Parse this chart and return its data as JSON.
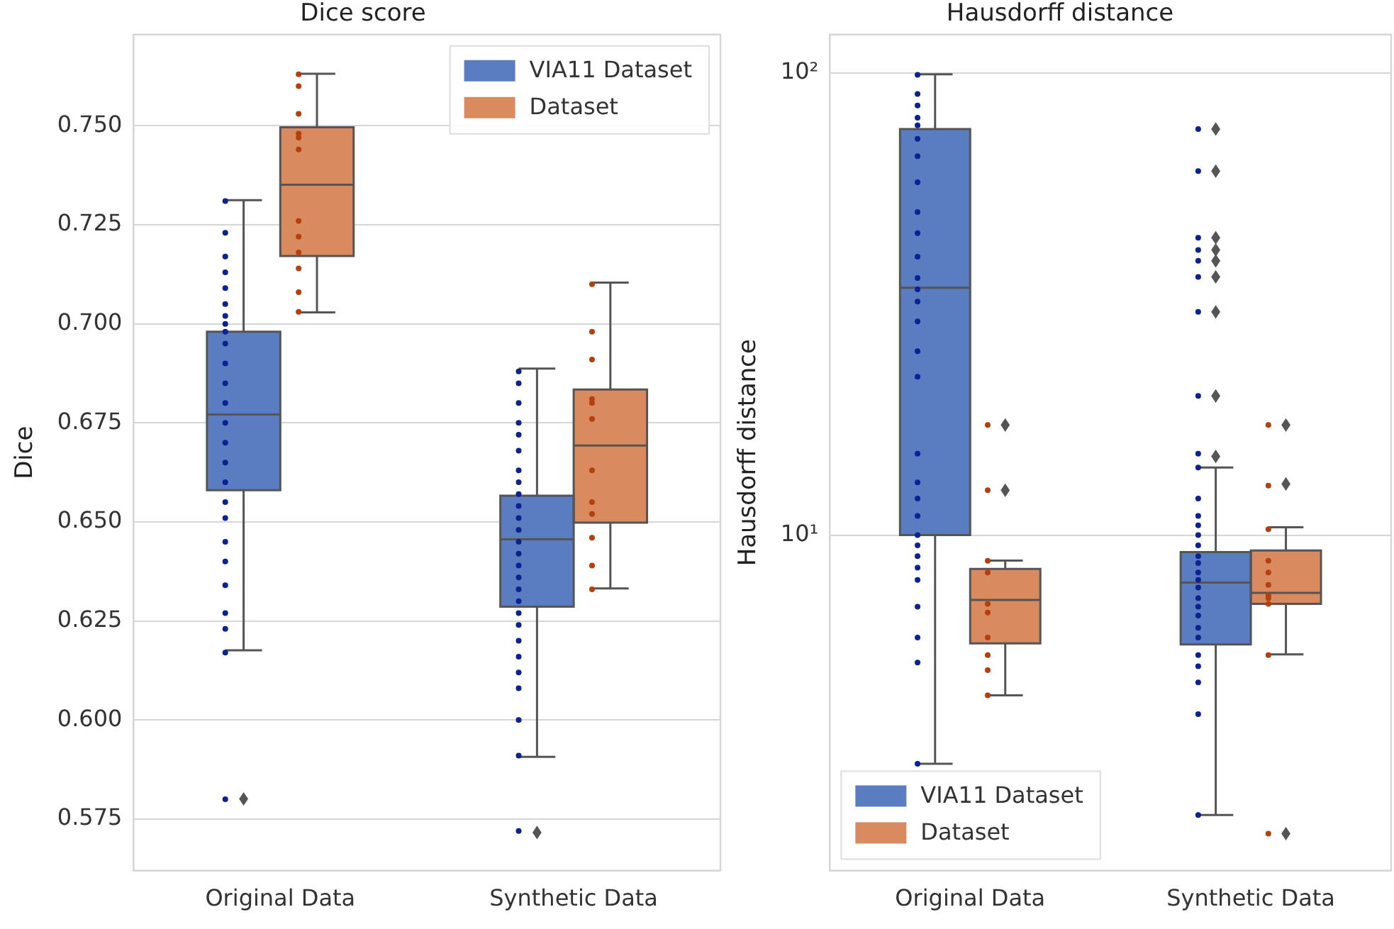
{
  "chart_data": [
    {
      "type": "box",
      "title": "Dice score",
      "ylabel": "Dice",
      "categories": [
        "Original Data",
        "Synthetic Data"
      ],
      "ylim": [
        0.562,
        0.773
      ],
      "yticks": [
        {
          "value": 0.575,
          "label": "0.575"
        },
        {
          "value": 0.6,
          "label": "0.600"
        },
        {
          "value": 0.625,
          "label": "0.625"
        },
        {
          "value": 0.65,
          "label": "0.650"
        },
        {
          "value": 0.675,
          "label": "0.675"
        },
        {
          "value": 0.7,
          "label": "0.700"
        },
        {
          "value": 0.725,
          "label": "0.725"
        },
        {
          "value": 0.75,
          "label": "0.750"
        }
      ],
      "grid": "y",
      "legend": "top right",
      "marker": "circle",
      "series": [
        {
          "name": "VIA11 Dataset",
          "color": "#5a7dc1",
          "boxes": [
            {
              "low": 0.6176,
              "q1": 0.658,
              "median": 0.6771,
              "q3": 0.698,
              "high": 0.7312,
              "outliers": [
                0.5801
              ]
            },
            {
              "low": 0.5907,
              "q1": 0.6286,
              "median": 0.6456,
              "q3": 0.6566,
              "high": 0.6887,
              "outliers": [
                0.5716
              ]
            }
          ]
        },
        {
          "name": "Dataset",
          "color": "#d98a5e",
          "boxes": [
            {
              "low": 0.7029,
              "q1": 0.7171,
              "median": 0.7351,
              "q3": 0.7496,
              "high": 0.7631
            },
            {
              "low": 0.6332,
              "q1": 0.6498,
              "median": 0.6693,
              "q3": 0.6834,
              "high": 0.7104
            }
          ]
        },
        {
          "type": "scatter",
          "color": "#0b2290",
          "x": [
            "Original Data",
            "Original Data",
            "Original Data",
            "Original Data",
            "Original Data",
            "Original Data",
            "Original Data",
            "Original Data",
            "Original Data",
            "Original Data",
            "Original Data",
            "Original Data",
            "Original Data",
            "Original Data",
            "Original Data",
            "Original Data",
            "Original Data",
            "Original Data",
            "Original Data",
            "Original Data",
            "Original Data",
            "Original Data",
            "Original Data",
            "Original Data",
            "Original Data",
            "Original Data",
            "Synthetic Data",
            "Synthetic Data",
            "Synthetic Data",
            "Synthetic Data",
            "Synthetic Data",
            "Synthetic Data",
            "Synthetic Data",
            "Synthetic Data",
            "Synthetic Data",
            "Synthetic Data",
            "Synthetic Data",
            "Synthetic Data",
            "Synthetic Data",
            "Synthetic Data",
            "Synthetic Data",
            "Synthetic Data",
            "Synthetic Data",
            "Synthetic Data",
            "Synthetic Data",
            "Synthetic Data",
            "Synthetic Data",
            "Synthetic Data",
            "Synthetic Data",
            "Synthetic Data",
            "Synthetic Data",
            "Synthetic Data",
            "Synthetic Data"
          ],
          "values": [
            0.731,
            0.723,
            0.717,
            0.713,
            0.709,
            0.705,
            0.702,
            0.7,
            0.698,
            0.695,
            0.69,
            0.685,
            0.68,
            0.675,
            0.67,
            0.665,
            0.66,
            0.655,
            0.651,
            0.645,
            0.64,
            0.634,
            0.627,
            0.623,
            0.617,
            0.58,
            0.688,
            0.685,
            0.68,
            0.675,
            0.672,
            0.668,
            0.663,
            0.66,
            0.657,
            0.654,
            0.651,
            0.648,
            0.645,
            0.642,
            0.639,
            0.636,
            0.633,
            0.63,
            0.627,
            0.624,
            0.62,
            0.616,
            0.612,
            0.608,
            0.6,
            0.591,
            0.572
          ]
        },
        {
          "type": "scatter",
          "color": "#b5400e",
          "x": [
            "Original Data",
            "Original Data",
            "Original Data",
            "Original Data",
            "Original Data",
            "Original Data",
            "Original Data",
            "Original Data",
            "Original Data",
            "Original Data",
            "Original Data",
            "Original Data",
            "Synthetic Data",
            "Synthetic Data",
            "Synthetic Data",
            "Synthetic Data",
            "Synthetic Data",
            "Synthetic Data",
            "Synthetic Data",
            "Synthetic Data",
            "Synthetic Data",
            "Synthetic Data",
            "Synthetic Data",
            "Synthetic Data"
          ],
          "values": [
            0.763,
            0.76,
            0.753,
            0.748,
            0.747,
            0.744,
            0.726,
            0.722,
            0.718,
            0.714,
            0.708,
            0.703,
            0.71,
            0.698,
            0.691,
            0.681,
            0.68,
            0.676,
            0.663,
            0.655,
            0.652,
            0.646,
            0.639,
            0.633
          ]
        }
      ]
    },
    {
      "type": "box",
      "title": "Hausdorff distance",
      "ylabel": "Hausdorff distance",
      "categories": [
        "Original Data",
        "Synthetic Data"
      ],
      "log": true,
      "ylim": [
        1.88,
        121
      ],
      "yticks": [
        {
          "value": 10,
          "label": "10¹"
        },
        {
          "value": 100,
          "label": "10²"
        }
      ],
      "grid": "y",
      "legend": "bottom left",
      "marker": "circle",
      "series": [
        {
          "name": "VIA11 Dataset",
          "color": "#5a7dc1",
          "boxes": [
            {
              "low": 3.2,
              "q1": 10,
              "median": 34.3,
              "q3": 75.6,
              "high": 99.3
            },
            {
              "low": 2.48,
              "q1": 5.8,
              "median": 7.89,
              "q3": 9.19,
              "high": 14,
              "outliers": [
                75.6,
                61.3,
                44,
                41.4,
                39.2,
                36.2,
                30.4,
                20,
                14.8
              ]
            }
          ]
        },
        {
          "name": "Dataset",
          "color": "#d98a5e",
          "boxes": [
            {
              "low": 4.5,
              "q1": 5.83,
              "median": 7.24,
              "q3": 8.45,
              "high": 8.81,
              "outliers": [
                17.3,
                12.5
              ]
            },
            {
              "low": 5.52,
              "q1": 7.1,
              "median": 7.5,
              "q3": 9.26,
              "high": 10.4,
              "outliers": [
                17.3,
                12.9,
                2.26
              ]
            }
          ]
        },
        {
          "type": "scatter",
          "color": "#0b2290",
          "x": [
            "Original Data",
            "Original Data",
            "Original Data",
            "Original Data",
            "Original Data",
            "Original Data",
            "Original Data",
            "Original Data",
            "Original Data",
            "Original Data",
            "Original Data",
            "Original Data",
            "Original Data",
            "Original Data",
            "Original Data",
            "Original Data",
            "Original Data",
            "Original Data",
            "Original Data",
            "Original Data",
            "Original Data",
            "Original Data",
            "Original Data",
            "Original Data",
            "Original Data",
            "Original Data",
            "Original Data",
            "Original Data",
            "Original Data",
            "Original Data",
            "Synthetic Data",
            "Synthetic Data",
            "Synthetic Data",
            "Synthetic Data",
            "Synthetic Data",
            "Synthetic Data",
            "Synthetic Data",
            "Synthetic Data",
            "Synthetic Data",
            "Synthetic Data",
            "Synthetic Data",
            "Synthetic Data",
            "Synthetic Data",
            "Synthetic Data",
            "Synthetic Data",
            "Synthetic Data",
            "Synthetic Data",
            "Synthetic Data",
            "Synthetic Data",
            "Synthetic Data",
            "Synthetic Data",
            "Synthetic Data",
            "Synthetic Data",
            "Synthetic Data",
            "Synthetic Data",
            "Synthetic Data",
            "Synthetic Data",
            "Synthetic Data",
            "Synthetic Data",
            "Synthetic Data"
          ],
          "values": [
            99,
            90,
            85,
            80,
            77,
            72,
            66,
            58,
            50,
            45,
            40,
            36,
            34,
            32,
            29,
            25,
            22,
            15,
            13,
            12,
            11,
            10,
            9.5,
            9,
            8.5,
            8,
            7,
            6,
            5.3,
            3.2,
            75.6,
            61.3,
            44,
            41.4,
            39.2,
            36.2,
            30.4,
            20,
            15,
            14,
            12,
            11,
            10.5,
            10,
            9.5,
            9,
            8.7,
            8.3,
            8,
            7.7,
            7.3,
            7,
            6.7,
            6.3,
            6,
            5.5,
            5.2,
            4.8,
            4.1,
            2.48
          ]
        },
        {
          "type": "scatter",
          "color": "#b5400e",
          "x": [
            "Original Data",
            "Original Data",
            "Original Data",
            "Original Data",
            "Original Data",
            "Original Data",
            "Original Data",
            "Original Data",
            "Original Data",
            "Original Data",
            "Synthetic Data",
            "Synthetic Data",
            "Synthetic Data",
            "Synthetic Data",
            "Synthetic Data",
            "Synthetic Data",
            "Synthetic Data",
            "Synthetic Data",
            "Synthetic Data",
            "Synthetic Data",
            "Synthetic Data"
          ],
          "values": [
            17.3,
            12.5,
            8.8,
            8.3,
            7.1,
            6.8,
            6,
            5.5,
            5.1,
            4.5,
            17.3,
            12.8,
            10.3,
            8.8,
            8.3,
            7.8,
            7.4,
            7.3,
            7.1,
            5.5,
            2.26
          ]
        }
      ]
    }
  ]
}
